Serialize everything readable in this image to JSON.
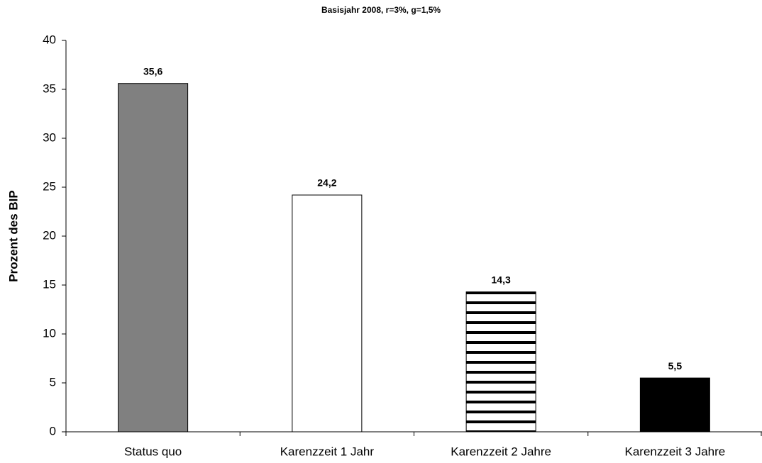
{
  "chart_data": {
    "type": "bar",
    "title": "Basisjahr 2008, r=3%, g=1,5%",
    "y_label": "Prozent des BIP",
    "categories": [
      "Status quo",
      "Karenzzeit 1 Jahr",
      "Karenzzeit 2 Jahre",
      "Karenzzeit 3 Jahre"
    ],
    "values": [
      35.6,
      24.2,
      14.3,
      5.5
    ],
    "value_labels": [
      "35,6",
      "24,2",
      "14,3",
      "5,5"
    ],
    "bar_fills": [
      "#808080",
      "#ffffff",
      "horizontal-stripes",
      "#000000"
    ],
    "ylim": [
      0,
      40
    ],
    "yticks": [
      0,
      5,
      10,
      15,
      20,
      25,
      30,
      35,
      40
    ],
    "grid": false
  }
}
